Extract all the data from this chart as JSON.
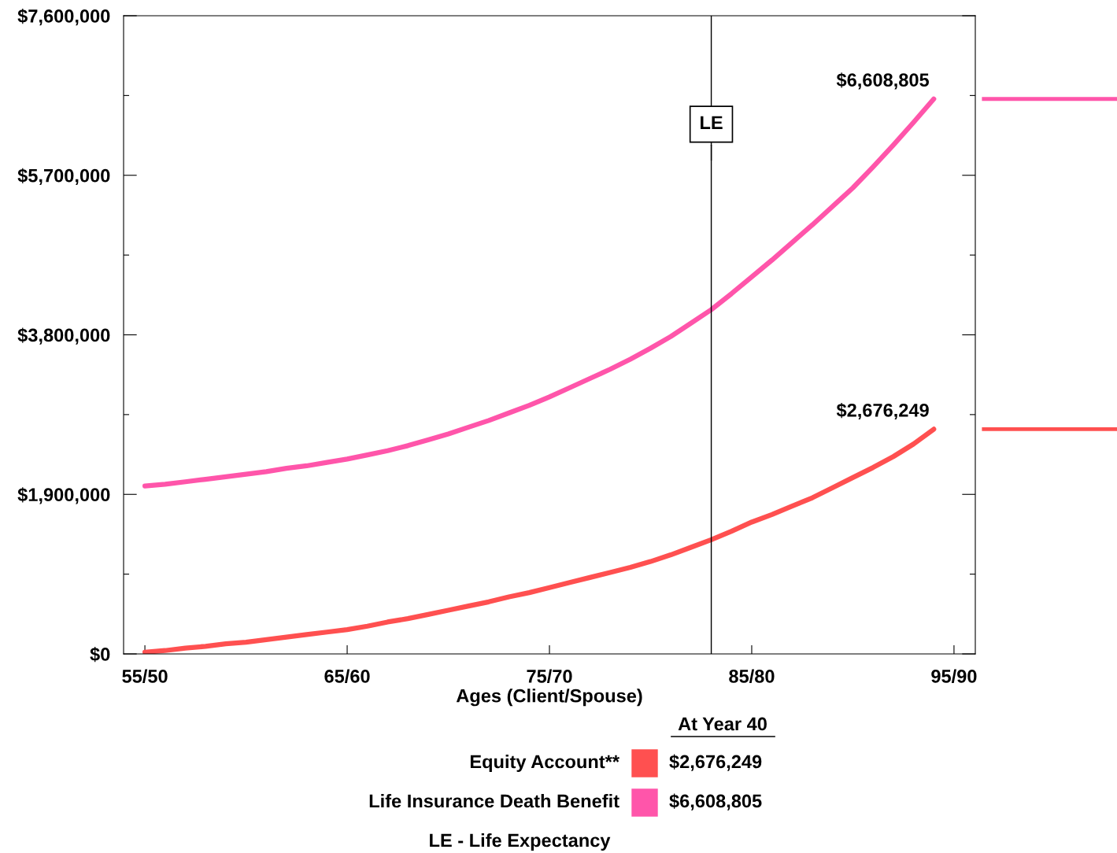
{
  "chart_data": {
    "type": "line",
    "xlabel": "Ages (Client/Spouse)",
    "categories": [
      "55/50",
      null,
      null,
      null,
      null,
      null,
      null,
      null,
      null,
      null,
      "65/60",
      null,
      null,
      null,
      null,
      null,
      null,
      null,
      null,
      null,
      "75/70",
      null,
      null,
      null,
      null,
      null,
      null,
      null,
      null,
      null,
      "85/80",
      null,
      null,
      null,
      null,
      null,
      null,
      null,
      null,
      null,
      "95/90"
    ],
    "series": [
      {
        "name": "Equity Account**",
        "color": "#ff5050",
        "values": [
          20000,
          40000,
          70000,
          90000,
          120000,
          140000,
          170000,
          200000,
          230000,
          260000,
          290000,
          330000,
          380000,
          420000,
          470000,
          520000,
          570000,
          620000,
          680000,
          730000,
          790000,
          850000,
          910000,
          970000,
          1030000,
          1100000,
          1180000,
          1270000,
          1360000,
          1460000,
          1570000,
          1660000,
          1760000,
          1860000,
          1980000,
          2100000,
          2220000,
          2350000,
          2500000,
          2676249,
          null
        ],
        "value_labels": [
          null,
          null,
          null,
          null,
          null,
          null,
          null,
          null,
          null,
          null,
          null,
          null,
          null,
          null,
          null,
          null,
          null,
          null,
          null,
          null,
          null,
          null,
          null,
          null,
          null,
          null,
          null,
          null,
          null,
          null,
          null,
          null,
          null,
          null,
          null,
          null,
          null,
          null,
          null,
          "$2,676,249",
          null
        ]
      },
      {
        "name": "Life Insurance Death Benefit",
        "color": "#ff55aa",
        "values": [
          2000000,
          2020000,
          2050000,
          2080000,
          2110000,
          2140000,
          2170000,
          2210000,
          2240000,
          2280000,
          2320000,
          2370000,
          2420000,
          2480000,
          2550000,
          2620000,
          2700000,
          2780000,
          2870000,
          2960000,
          3060000,
          3170000,
          3280000,
          3390000,
          3510000,
          3640000,
          3780000,
          3940000,
          4100000,
          4290000,
          4490000,
          4690000,
          4900000,
          5110000,
          5330000,
          5550000,
          5800000,
          6060000,
          6330000,
          6608805,
          null
        ],
        "value_labels": [
          null,
          null,
          null,
          null,
          null,
          null,
          null,
          null,
          null,
          null,
          null,
          null,
          null,
          null,
          null,
          null,
          null,
          null,
          null,
          null,
          null,
          null,
          null,
          null,
          null,
          null,
          null,
          null,
          null,
          null,
          null,
          null,
          null,
          null,
          null,
          null,
          null,
          null,
          null,
          "$6,608,805",
          null
        ]
      }
    ],
    "ylim": [
      0,
      7600000
    ],
    "yticks": [
      {
        "value": 0,
        "label": "$0"
      },
      {
        "value": 1900000,
        "label": "$1,900,000"
      },
      {
        "value": 3800000,
        "label": "$3,800,000"
      },
      {
        "value": 5700000,
        "label": "$5,700,000"
      },
      {
        "value": 7600000,
        "label": "$7,600,000"
      }
    ],
    "legend": "bottom",
    "legend_title": "At Year 40",
    "annotations": [
      "LE",
      "LE - Life Expectancy"
    ],
    "marker": "none",
    "line_style": "solid"
  }
}
